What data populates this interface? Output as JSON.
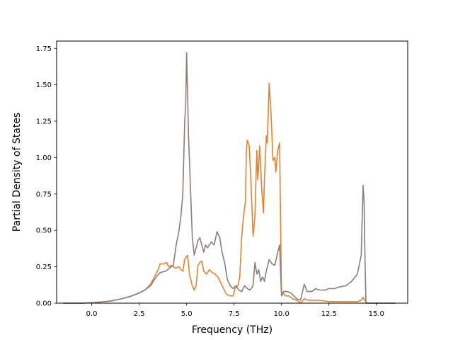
{
  "chart_data": {
    "type": "line",
    "title": "",
    "xlabel": "Frequency (THz)",
    "ylabel": "Partial Density of States",
    "xlim": [
      -1.85,
      16.65
    ],
    "ylim": [
      0,
      1.8
    ],
    "xticks": [
      0.0,
      2.5,
      5.0,
      7.5,
      10.0,
      12.5,
      15.0
    ],
    "xtick_labels": [
      "0.0",
      "2.5",
      "5.0",
      "7.5",
      "10.0",
      "12.5",
      "15.0"
    ],
    "yticks": [
      0.0,
      0.25,
      0.5,
      0.75,
      1.0,
      1.25,
      1.5,
      1.75
    ],
    "ytick_labels": [
      "0.00",
      "0.25",
      "0.50",
      "0.75",
      "1.00",
      "1.25",
      "1.50",
      "1.75"
    ],
    "grid": false,
    "legend": "none",
    "series": [
      {
        "color": "#e8822a",
        "points": [
          [
            -1.5,
            0
          ],
          [
            -0.5,
            0
          ],
          [
            0,
            0.003
          ],
          [
            0.5,
            0.008
          ],
          [
            1,
            0.015
          ],
          [
            1.5,
            0.028
          ],
          [
            2,
            0.045
          ],
          [
            2.5,
            0.07
          ],
          [
            2.8,
            0.09
          ],
          [
            3.1,
            0.13
          ],
          [
            3.3,
            0.18
          ],
          [
            3.5,
            0.23
          ],
          [
            3.6,
            0.27
          ],
          [
            3.8,
            0.27
          ],
          [
            3.95,
            0.28
          ],
          [
            4.05,
            0.25
          ],
          [
            4.2,
            0.26
          ],
          [
            4.4,
            0.24
          ],
          [
            4.6,
            0.25
          ],
          [
            4.7,
            0.23
          ],
          [
            4.8,
            0.22
          ],
          [
            4.9,
            0.3
          ],
          [
            5.05,
            0.33
          ],
          [
            5.15,
            0.2
          ],
          [
            5.3,
            0.12
          ],
          [
            5.4,
            0.09
          ],
          [
            5.5,
            0.12
          ],
          [
            5.6,
            0.26
          ],
          [
            5.7,
            0.28
          ],
          [
            5.8,
            0.29
          ],
          [
            5.9,
            0.22
          ],
          [
            6.05,
            0.2
          ],
          [
            6.2,
            0.23
          ],
          [
            6.35,
            0.21
          ],
          [
            6.5,
            0.2
          ],
          [
            6.65,
            0.18
          ],
          [
            6.8,
            0.14
          ],
          [
            6.95,
            0.1
          ],
          [
            7.1,
            0.06
          ],
          [
            7.3,
            0.05
          ],
          [
            7.45,
            0.05
          ],
          [
            7.55,
            0.1
          ],
          [
            7.7,
            0.12
          ],
          [
            7.8,
            0.18
          ],
          [
            7.9,
            0.45
          ],
          [
            8.0,
            0.6
          ],
          [
            8.1,
            0.7
          ],
          [
            8.15,
            1.05
          ],
          [
            8.2,
            1.12
          ],
          [
            8.3,
            1.08
          ],
          [
            8.4,
            0.8
          ],
          [
            8.5,
            0.46
          ],
          [
            8.6,
            0.6
          ],
          [
            8.7,
            1.05
          ],
          [
            8.75,
            0.85
          ],
          [
            8.8,
            0.95
          ],
          [
            8.85,
            1.08
          ],
          [
            8.95,
            0.8
          ],
          [
            9.05,
            0.62
          ],
          [
            9.1,
            0.85
          ],
          [
            9.2,
            1.15
          ],
          [
            9.25,
            1.1
          ],
          [
            9.35,
            1.51
          ],
          [
            9.45,
            1.3
          ],
          [
            9.55,
            0.98
          ],
          [
            9.65,
            1.0
          ],
          [
            9.7,
            0.9
          ],
          [
            9.8,
            1.05
          ],
          [
            9.9,
            1.1
          ],
          [
            10.0,
            0.05
          ],
          [
            10.1,
            0.07
          ],
          [
            10.2,
            0.05
          ],
          [
            10.4,
            0.05
          ],
          [
            10.6,
            0.03
          ],
          [
            10.8,
            0.02
          ],
          [
            11.0,
            0.0
          ],
          [
            11.2,
            0.03
          ],
          [
            11.4,
            0.02
          ],
          [
            12,
            0.02
          ],
          [
            12.5,
            0.01
          ],
          [
            13,
            0.01
          ],
          [
            13.5,
            0.01
          ],
          [
            14.0,
            0.01
          ],
          [
            14.2,
            0.02
          ],
          [
            14.3,
            0.04
          ],
          [
            14.4,
            0.02
          ],
          [
            14.5,
            0.0
          ],
          [
            16,
            0.0
          ]
        ]
      },
      {
        "color": "#8c7d7f",
        "points": [
          [
            -1.5,
            0
          ],
          [
            -0.5,
            0
          ],
          [
            0,
            0.003
          ],
          [
            0.5,
            0.008
          ],
          [
            1,
            0.015
          ],
          [
            1.5,
            0.028
          ],
          [
            2,
            0.045
          ],
          [
            2.5,
            0.07
          ],
          [
            2.8,
            0.09
          ],
          [
            3.1,
            0.12
          ],
          [
            3.4,
            0.18
          ],
          [
            3.6,
            0.21
          ],
          [
            3.9,
            0.22
          ],
          [
            4.1,
            0.24
          ],
          [
            4.3,
            0.26
          ],
          [
            4.45,
            0.4
          ],
          [
            4.6,
            0.5
          ],
          [
            4.7,
            0.6
          ],
          [
            4.8,
            0.75
          ],
          [
            4.9,
            1.25
          ],
          [
            4.95,
            1.35
          ],
          [
            5.0,
            1.72
          ],
          [
            5.05,
            1.45
          ],
          [
            5.1,
            1.15
          ],
          [
            5.2,
            0.8
          ],
          [
            5.3,
            0.45
          ],
          [
            5.4,
            0.33
          ],
          [
            5.5,
            0.38
          ],
          [
            5.6,
            0.43
          ],
          [
            5.7,
            0.45
          ],
          [
            5.8,
            0.4
          ],
          [
            5.9,
            0.35
          ],
          [
            6.0,
            0.4
          ],
          [
            6.1,
            0.38
          ],
          [
            6.3,
            0.42
          ],
          [
            6.45,
            0.4
          ],
          [
            6.6,
            0.49
          ],
          [
            6.75,
            0.45
          ],
          [
            6.85,
            0.36
          ],
          [
            7.0,
            0.28
          ],
          [
            7.15,
            0.16
          ],
          [
            7.3,
            0.12
          ],
          [
            7.45,
            0.1
          ],
          [
            7.6,
            0.12
          ],
          [
            7.75,
            0.09
          ],
          [
            7.9,
            0.08
          ],
          [
            8.05,
            0.12
          ],
          [
            8.2,
            0.1
          ],
          [
            8.35,
            0.09
          ],
          [
            8.5,
            0.12
          ],
          [
            8.6,
            0.28
          ],
          [
            8.7,
            0.2
          ],
          [
            8.8,
            0.23
          ],
          [
            8.9,
            0.15
          ],
          [
            9.0,
            0.18
          ],
          [
            9.1,
            0.15
          ],
          [
            9.2,
            0.22
          ],
          [
            9.35,
            0.3
          ],
          [
            9.5,
            0.27
          ],
          [
            9.65,
            0.26
          ],
          [
            9.8,
            0.35
          ],
          [
            9.9,
            0.4
          ],
          [
            10.0,
            0.05
          ],
          [
            10.1,
            0.08
          ],
          [
            10.3,
            0.08
          ],
          [
            10.5,
            0.07
          ],
          [
            10.8,
            0.03
          ],
          [
            11.0,
            0.02
          ],
          [
            11.2,
            0.13
          ],
          [
            11.35,
            0.08
          ],
          [
            11.6,
            0.08
          ],
          [
            11.8,
            0.1
          ],
          [
            12.0,
            0.09
          ],
          [
            12.3,
            0.09
          ],
          [
            12.5,
            0.1
          ],
          [
            12.8,
            0.1
          ],
          [
            13.0,
            0.11
          ],
          [
            13.4,
            0.12
          ],
          [
            13.7,
            0.15
          ],
          [
            14.0,
            0.2
          ],
          [
            14.2,
            0.33
          ],
          [
            14.3,
            0.81
          ],
          [
            14.35,
            0.7
          ],
          [
            14.4,
            0.3
          ],
          [
            14.45,
            0.0
          ],
          [
            16,
            0.0
          ]
        ]
      }
    ]
  }
}
